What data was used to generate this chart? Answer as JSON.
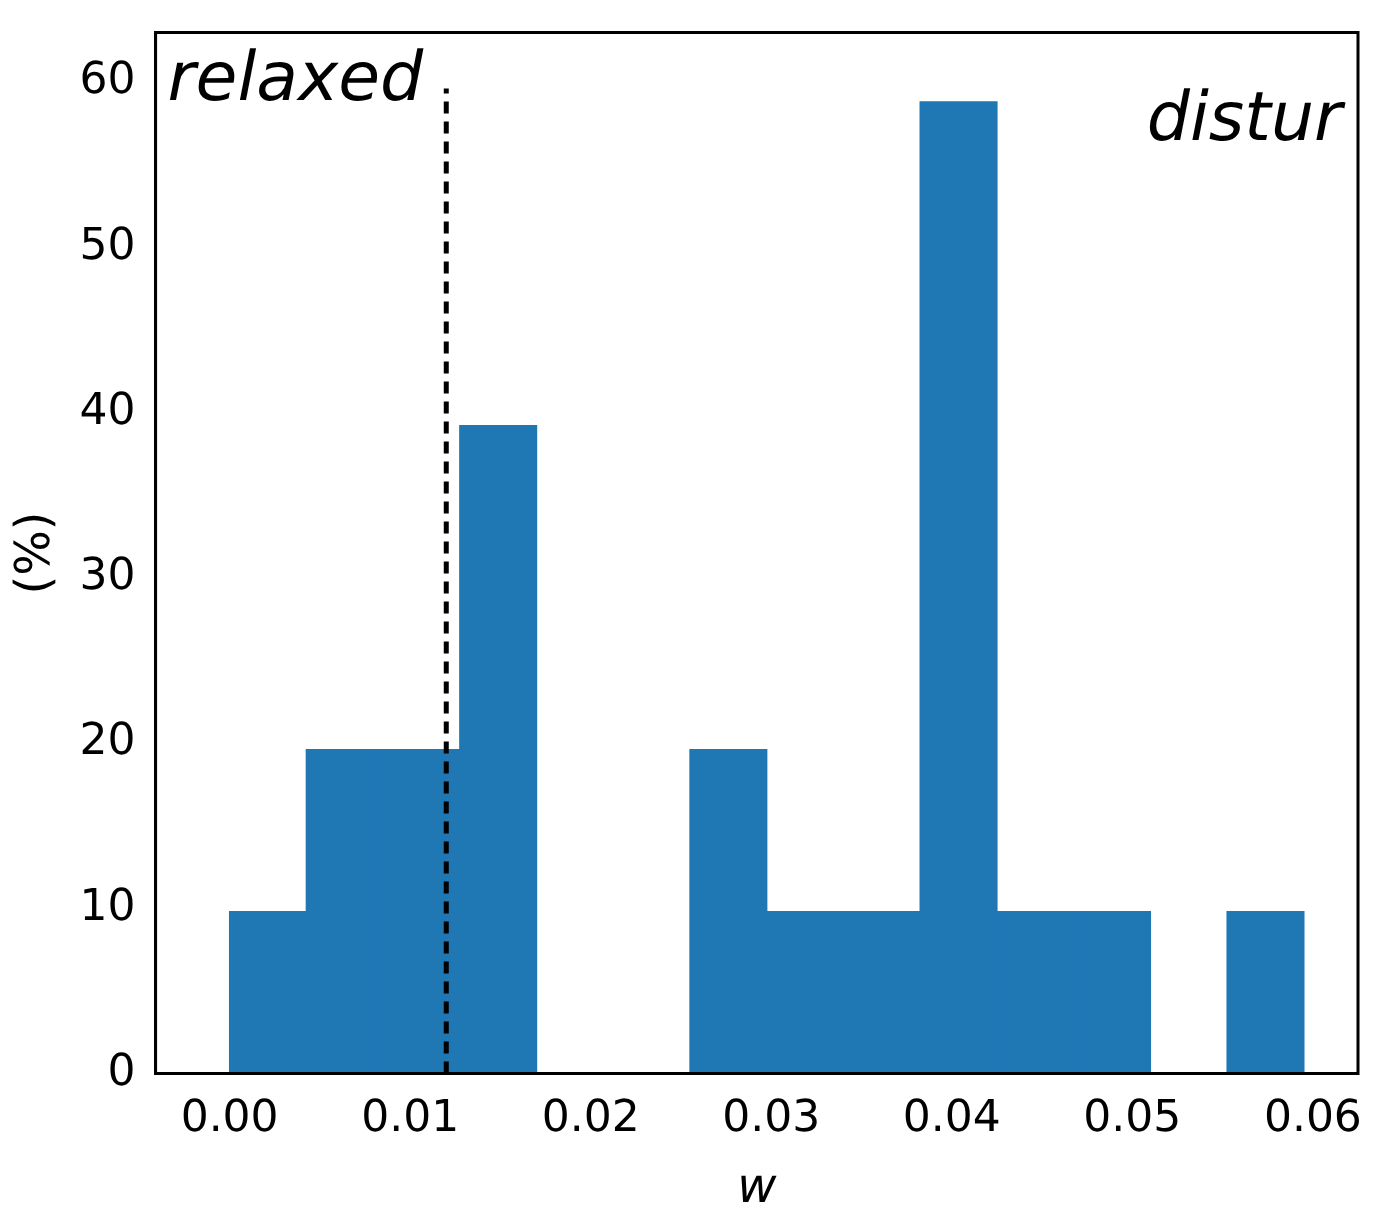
{
  "chart_data": {
    "type": "histogram",
    "xlabel": "w",
    "ylabel": "(%)",
    "bins": [
      0,
      0.00425,
      0.0085,
      0.01275,
      0.017,
      0.02125,
      0.0255,
      0.02975,
      0.034,
      0.03825,
      0.0425,
      0.04675,
      0.051,
      0.05525,
      0.0595
    ],
    "values": [
      9.8,
      19.6,
      19.6,
      39.2,
      0,
      0,
      19.6,
      9.8,
      9.8,
      58.8,
      9.8,
      9.8,
      0,
      9.8
    ],
    "color": "#1f77b4",
    "xlim": [
      -0.0041,
      0.0625
    ],
    "xticks": [
      {
        "value": 0,
        "label": "0.00"
      },
      0.01,
      0.02,
      0.03,
      0.04,
      0.05,
      0.06
    ],
    "ylim": [
      0,
      63
    ],
    "yticks": [
      0,
      10,
      20,
      30,
      40,
      50,
      60
    ],
    "ref_lines": [
      {
        "axis": "x",
        "value": 0.012,
        "color": "#000000",
        "line_style": "dashed"
      }
    ],
    "annotations": [
      "relaxed",
      "distur"
    ],
    "grid": false,
    "legend": false
  }
}
